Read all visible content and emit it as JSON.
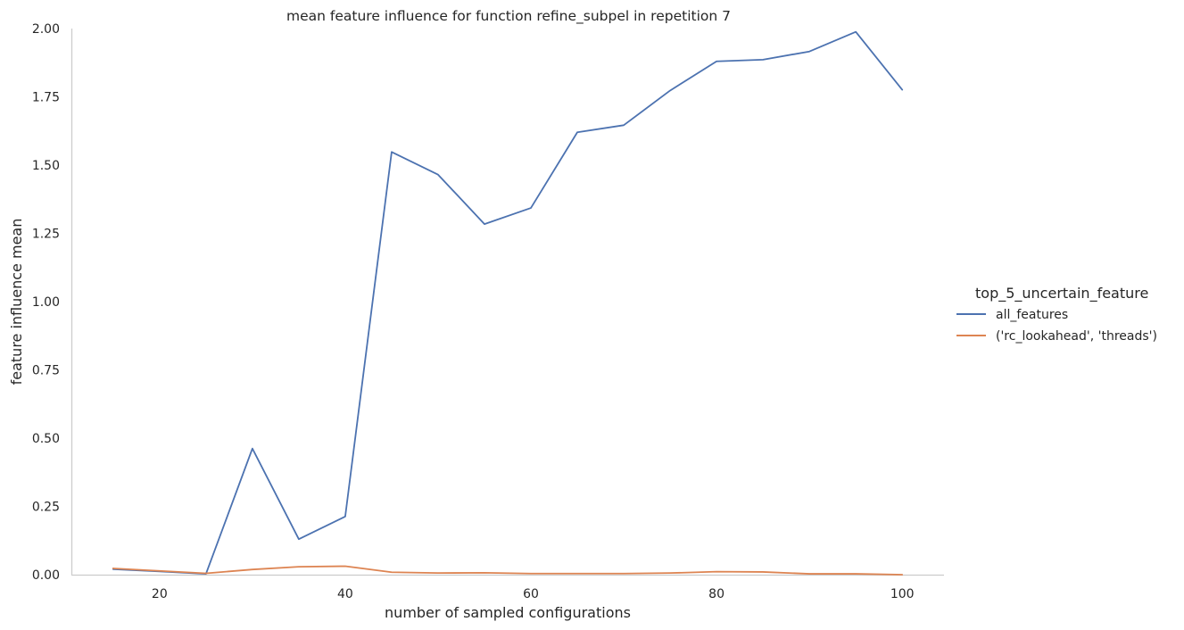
{
  "chart_data": {
    "type": "line",
    "title": "mean feature influence for function refine_subpel in repetition 7",
    "xlabel": "number of sampled configurations",
    "ylabel": "feature influence mean",
    "xlim": [
      10.5,
      104.5
    ],
    "ylim": [
      0,
      2.0
    ],
    "xticks": [
      20,
      40,
      60,
      80,
      100
    ],
    "yticks": [
      0.0,
      0.25,
      0.5,
      0.75,
      1.0,
      1.25,
      1.5,
      1.75,
      2.0
    ],
    "ytick_labels": [
      "0.00",
      "0.25",
      "0.50",
      "0.75",
      "1.00",
      "1.25",
      "1.50",
      "1.75",
      "2.00"
    ],
    "x": [
      15,
      20,
      25,
      30,
      35,
      40,
      45,
      50,
      55,
      60,
      65,
      70,
      75,
      80,
      85,
      90,
      95,
      100
    ],
    "legend_title": "top_5_uncertain_feature",
    "legend_position": "right",
    "grid": false,
    "series": [
      {
        "name": "all_features",
        "color": "#4c72b0",
        "values": [
          0.02,
          0.012,
          0.003,
          0.462,
          0.13,
          0.213,
          1.548,
          1.465,
          1.284,
          1.343,
          1.62,
          1.646,
          1.773,
          1.88,
          1.886,
          1.916,
          1.988,
          1.776
        ]
      },
      {
        "name": "('rc_lookahead', 'threads')",
        "color": "#dd8452",
        "values": [
          0.023,
          0.014,
          0.005,
          0.019,
          0.029,
          0.031,
          0.009,
          0.006,
          0.007,
          0.004,
          0.004,
          0.004,
          0.006,
          0.011,
          0.01,
          0.003,
          0.003,
          0.0
        ]
      }
    ]
  }
}
